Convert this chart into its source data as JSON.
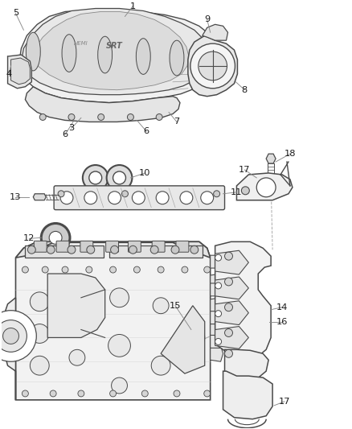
{
  "bg_color": "#ffffff",
  "line_color": "#4a4a4a",
  "label_leader_color": "#888888",
  "fig_width": 4.38,
  "fig_height": 5.33,
  "dpi": 100
}
